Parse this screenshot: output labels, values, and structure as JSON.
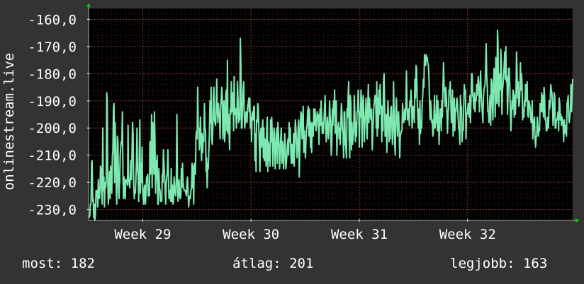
{
  "colors": {
    "background": "#333333",
    "plot_background": "#000000",
    "line": "#7de8b0",
    "grid": "#5a2a2a",
    "text": "#ffffff",
    "arrow": "#00cc00"
  },
  "stats": {
    "current": "most: 182",
    "average": "átlag: 201",
    "best": "legjobb: 163"
  },
  "chart_data": {
    "type": "line",
    "ylabel": "onlinestream.live",
    "yticks": [
      "-160,0",
      "-170,0",
      "-180,0",
      "-190,0",
      "-200,0",
      "-210,0",
      "-220,0",
      "-230,0"
    ],
    "ylim": [
      -234,
      -156
    ],
    "xticks": [
      "Week 29",
      "Week 30",
      "Week 31",
      "Week 32"
    ],
    "xtick_positions_weeks": [
      29,
      30,
      31,
      32
    ],
    "xlim_weeks": [
      28.5,
      32.97
    ],
    "grid": true,
    "series": [
      {
        "values": [
          -233,
          -232,
          -228,
          -228,
          -213,
          -212,
          -227,
          -226,
          -233,
          -228,
          -234,
          -232,
          -223,
          -225,
          -223,
          -229,
          -219,
          -225,
          -226,
          -223,
          -214,
          -215,
          -223,
          -228,
          -200,
          -223,
          -218,
          -229,
          -220,
          -222,
          -220,
          -187,
          -190,
          -220,
          -228,
          -222,
          -216,
          -226,
          -214,
          -218,
          -224,
          -211,
          -208,
          -193,
          -191,
          -220,
          -198,
          -208,
          -223,
          -228,
          -203,
          -205,
          -221,
          -226,
          -219,
          -210,
          -207,
          -205,
          -206,
          -194,
          -217,
          -226,
          -218,
          -223,
          -226,
          -219,
          -220,
          -219,
          -221,
          -199,
          -218,
          -220,
          -222,
          -219,
          -212,
          -219,
          -210,
          -198,
          -202,
          -220,
          -226,
          -223,
          -224,
          -219,
          -213,
          -200,
          -215,
          -217,
          -227,
          -210,
          -197,
          -224,
          -213,
          -220,
          -207,
          -221,
          -226,
          -228,
          -222,
          -221,
          -228,
          -224,
          -218,
          -218,
          -217,
          -225,
          -221,
          -225,
          -205,
          -217,
          -216,
          -195,
          -222,
          -198,
          -201,
          -217,
          -194,
          -205,
          -224,
          -212,
          -219,
          -210,
          -228,
          -228,
          -215,
          -222,
          -223,
          -227,
          -225,
          -227,
          -217,
          -220,
          -208,
          -213,
          -217,
          -222,
          -228,
          -220,
          -218,
          -216,
          -208,
          -219,
          -226,
          -223,
          -224,
          -227,
          -215,
          -227,
          -221,
          -228,
          -227,
          -218,
          -222,
          -224,
          -225,
          -218,
          -195,
          -220,
          -227,
          -222,
          -219,
          -225,
          -226,
          -225,
          -215,
          -222,
          -213,
          -220,
          -222,
          -223,
          -223,
          -223,
          -224,
          -225,
          -220,
          -218,
          -224,
          -229,
          -226,
          -225,
          -226,
          -223,
          -222,
          -213,
          -222,
          -214,
          -228,
          -213,
          -216,
          -217,
          -203,
          -201,
          -204,
          -185,
          -200,
          -200,
          -208,
          -205,
          -196,
          -204,
          -212,
          -202,
          -209,
          -203,
          -205,
          -191,
          -200,
          -201,
          -216,
          -211,
          -222,
          -213,
          -215,
          -208,
          -202,
          -190,
          -198,
          -185,
          -204,
          -206,
          -200,
          -189,
          -185,
          -197,
          -198,
          -199,
          -193,
          -182,
          -193,
          -198,
          -191,
          -194,
          -196,
          -204,
          -192,
          -190,
          -185,
          -189,
          -204,
          -196,
          -190,
          -205,
          -202,
          -188,
          -186,
          -201,
          -175,
          -202,
          -195,
          -202,
          -208,
          -193,
          -195,
          -183,
          -194,
          -189,
          -187,
          -201,
          -181,
          -195,
          -193,
          -193,
          -200,
          -196,
          -183,
          -190,
          -198,
          -194,
          -197,
          -167,
          -177,
          -200,
          -200,
          -192,
          -186,
          -183,
          -195,
          -200,
          -197,
          -194,
          -197,
          -198,
          -192,
          -191,
          -189,
          -194,
          -189,
          -200,
          -196,
          -205,
          -195,
          -194,
          -197,
          -192,
          -192,
          -212,
          -202,
          -216,
          -197,
          -198,
          -191,
          -192,
          -200,
          -208,
          -216,
          -202,
          -200,
          -207,
          -201,
          -197,
          -211,
          -200,
          -212,
          -204,
          -209,
          -214,
          -201,
          -196,
          -216,
          -205,
          -212,
          -206,
          -214,
          -197,
          -205,
          -196,
          -203,
          -214,
          -208,
          -200,
          -202,
          -215,
          -210,
          -204,
          -200,
          -213,
          -198,
          -202,
          -206,
          -215,
          -209,
          -204,
          -200,
          -213,
          -205,
          -207,
          -215,
          -209,
          -202,
          -206,
          -215,
          -213,
          -210,
          -206,
          -204,
          -210,
          -198,
          -205,
          -200,
          -210,
          -213,
          -206,
          -212,
          -213,
          -202,
          -214,
          -205,
          -197,
          -200,
          -205,
          -211,
          -208,
          -200,
          -197,
          -218,
          -208,
          -199,
          -194,
          -195,
          -204,
          -199,
          -192,
          -209,
          -201,
          -206,
          -211,
          -204,
          -200,
          -199,
          -194,
          -192,
          -203,
          -193,
          -198,
          -207,
          -198,
          -209,
          -200,
          -198,
          -203,
          -193,
          -199,
          -193,
          -196,
          -201,
          -199,
          -194,
          -197,
          -195,
          -206,
          -198,
          -193,
          -199,
          -190,
          -196,
          -202,
          -198,
          -202,
          -197,
          -193,
          -188,
          -198,
          -205,
          -201,
          -196,
          -200,
          -204,
          -201,
          -190,
          -195,
          -199,
          -210,
          -205,
          -193,
          -199,
          -190,
          -195,
          -186,
          -202,
          -190,
          -190,
          -210,
          -201,
          -200,
          -198,
          -204,
          -200,
          -206,
          -198,
          -191,
          -194,
          -201,
          -201,
          -211,
          -194,
          -194,
          -206,
          -207,
          -211,
          -193,
          -196,
          -188,
          -183,
          -204,
          -211,
          -188,
          -191,
          -208,
          -198,
          -206,
          -203,
          -201,
          -188,
          -195,
          -205,
          -198,
          -203,
          -194,
          -194,
          -186,
          -192,
          -207,
          -194,
          -196,
          -186,
          -190,
          -207,
          -192,
          -188,
          -195,
          -205,
          -197,
          -195,
          -189,
          -199,
          -204,
          -192,
          -184,
          -198,
          -189,
          -193,
          -196,
          -197,
          -193,
          -208,
          -202,
          -197,
          -192,
          -190,
          -188,
          -188,
          -200,
          -183,
          -203,
          -189,
          -200,
          -186,
          -195,
          -184,
          -191,
          -193,
          -205,
          -192,
          -201,
          -183,
          -180,
          -190,
          -203,
          -197,
          -195,
          -209,
          -200,
          -190,
          -195,
          -205,
          -196,
          -204,
          -193,
          -192,
          -198,
          -206,
          -200,
          -183,
          -196,
          -206,
          -210,
          -194,
          -189,
          -196,
          -203,
          -196,
          -194,
          -201,
          -211,
          -203,
          -202,
          -201,
          -201,
          -191,
          -195,
          -198,
          -196,
          -193,
          -197,
          -190,
          -179,
          -192,
          -197,
          -196,
          -193,
          -199,
          -190,
          -192,
          -186,
          -191,
          -200,
          -196,
          -192,
          -193,
          -198,
          -182,
          -189,
          -177,
          -178,
          -189,
          -195,
          -200,
          -193,
          -206,
          -190,
          -202,
          -199,
          -200,
          -191,
          -188,
          -182,
          -185,
          -173,
          -175,
          -177,
          -173,
          -175,
          -174,
          -176,
          -177,
          -181,
          -190,
          -197,
          -190,
          -193,
          -198,
          -197,
          -203,
          -201,
          -195,
          -188,
          -200,
          -195,
          -198,
          -188,
          -201,
          -190,
          -196,
          -206,
          -198,
          -193,
          -193,
          -201,
          -190,
          -196,
          -185,
          -176,
          -185,
          -187,
          -192,
          -185,
          -188,
          -194,
          -202,
          -194,
          -193,
          -186,
          -186,
          -183,
          -190,
          -198,
          -197,
          -186,
          -203,
          -195,
          -189,
          -201,
          -193,
          -194,
          -191,
          -189,
          -192,
          -196,
          -200,
          -201,
          -206,
          -188,
          -193,
          -192,
          -205,
          -200,
          -201,
          -192,
          -184,
          -187,
          -186,
          -204,
          -195,
          -195,
          -193,
          -191,
          -195,
          -196,
          -188,
          -198,
          -189,
          -180,
          -180,
          -188,
          -189,
          -193,
          -187,
          -194,
          -189,
          -190,
          -184,
          -188,
          -184,
          -181,
          -185,
          -194,
          -187,
          -179,
          -187,
          -191,
          -194,
          -198,
          -189,
          -186,
          -185,
          -184,
          -178,
          -169,
          -181,
          -185,
          -194,
          -194,
          -198,
          -191,
          -188,
          -199,
          -182,
          -183,
          -191,
          -197,
          -184,
          -178,
          -182,
          -196,
          -174,
          -180,
          -191,
          -164,
          -169,
          -190,
          -192,
          -180,
          -186,
          -171,
          -176,
          -195,
          -186,
          -184,
          -180,
          -177,
          -172,
          -182,
          -170,
          -183,
          -181,
          -195,
          -187,
          -178,
          -178,
          -184,
          -194,
          -201,
          -195,
          -190,
          -193,
          -186,
          -187,
          -196,
          -188,
          -195,
          -188,
          -172,
          -180,
          -189,
          -183,
          -192,
          -191,
          -187,
          -176,
          -186,
          -180,
          -185,
          -197,
          -193,
          -196,
          -190,
          -192,
          -184,
          -190,
          -186,
          -183,
          -195,
          -196,
          -190,
          -191,
          -192,
          -196,
          -198,
          -196,
          -190,
          -204,
          -197,
          -200,
          -196,
          -204,
          -207,
          -203,
          -203,
          -196,
          -199,
          -203,
          -200,
          -201,
          -191,
          -194,
          -193,
          -187,
          -194,
          -188,
          -196,
          -185,
          -188,
          -197,
          -196,
          -201,
          -201,
          -199,
          -196,
          -200,
          -190,
          -193,
          -191,
          -184,
          -186,
          -187,
          -191,
          -199,
          -196,
          -187,
          -188,
          -200,
          -200,
          -197,
          -197,
          -196,
          -194,
          -201,
          -189,
          -191,
          -197,
          -195,
          -199,
          -196,
          -197,
          -199,
          -205,
          -197,
          -202,
          -200,
          -199,
          -203,
          -191,
          -190,
          -188,
          -196,
          -198,
          -196,
          -193,
          -184,
          -194,
          -188,
          -182
        ]
      }
    ]
  }
}
